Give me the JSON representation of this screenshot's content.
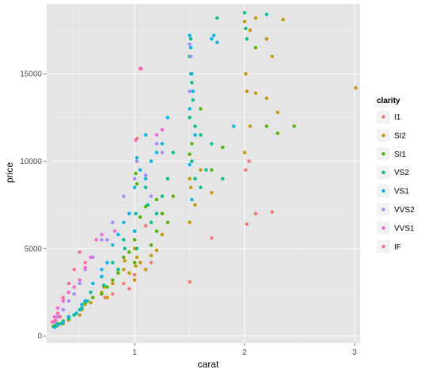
{
  "chart_data": {
    "type": "scatter",
    "xlabel": "carat",
    "ylabel": "price",
    "xlim": [
      0.2,
      3.05
    ],
    "ylim": [
      -400,
      19000
    ],
    "x_ticks": [
      1,
      2,
      3
    ],
    "x_tick_labels": [
      "1",
      "2",
      "3"
    ],
    "y_ticks": [
      0,
      5000,
      10000,
      15000
    ],
    "y_tick_labels": [
      "0",
      "5000",
      "10000",
      "15000"
    ],
    "grid": true,
    "background": "#e5e5e5",
    "legend": {
      "title": "clarity",
      "placement": "right"
    },
    "series": [
      {
        "name": "I1",
        "color": "#F8766D",
        "points": [
          [
            0.9,
            3000
          ],
          [
            0.95,
            2700
          ],
          [
            1.0,
            3500
          ],
          [
            1.05,
            15300
          ],
          [
            1.1,
            6300
          ],
          [
            1.15,
            4200
          ],
          [
            1.02,
            11300
          ],
          [
            1.5,
            3100
          ],
          [
            1.7,
            5600
          ],
          [
            2.01,
            9500
          ],
          [
            2.04,
            10000
          ],
          [
            2.1,
            7000
          ],
          [
            2.25,
            7100
          ],
          [
            2.02,
            6400
          ],
          [
            0.73,
            2200
          ],
          [
            0.8,
            2400
          ]
        ]
      },
      {
        "name": "SI2",
        "color": "#C49A00",
        "points": [
          [
            3.01,
            14200
          ],
          [
            2.0,
            18000
          ],
          [
            2.05,
            17500
          ],
          [
            2.1,
            18200
          ],
          [
            2.2,
            17000
          ],
          [
            2.25,
            16000
          ],
          [
            2.3,
            12800
          ],
          [
            2.35,
            18100
          ],
          [
            2.01,
            15000
          ],
          [
            2.02,
            14000
          ],
          [
            2.1,
            13900
          ],
          [
            2.2,
            13600
          ],
          [
            2.05,
            12000
          ],
          [
            2.0,
            10500
          ],
          [
            1.5,
            9000
          ],
          [
            1.51,
            8500
          ],
          [
            1.52,
            10000
          ],
          [
            1.55,
            7500
          ],
          [
            1.6,
            9500
          ],
          [
            1.7,
            8200
          ],
          [
            1.5,
            6500
          ],
          [
            1.0,
            5000
          ],
          [
            1.02,
            4500
          ],
          [
            1.05,
            4200
          ],
          [
            1.1,
            3800
          ],
          [
            1.15,
            4600
          ],
          [
            1.2,
            4900
          ],
          [
            1.25,
            5800
          ],
          [
            1.0,
            3200
          ],
          [
            1.01,
            4000
          ],
          [
            0.9,
            3800
          ],
          [
            0.91,
            4300
          ],
          [
            0.95,
            3600
          ],
          [
            0.7,
            2500
          ],
          [
            0.72,
            2800
          ],
          [
            0.75,
            2200
          ],
          [
            0.8,
            3000
          ],
          [
            0.5,
            1200
          ],
          [
            0.52,
            1500
          ],
          [
            0.55,
            1800
          ],
          [
            0.6,
            1900
          ],
          [
            0.4,
            900
          ],
          [
            0.35,
            700
          ],
          [
            0.3,
            600
          ]
        ]
      },
      {
        "name": "SI1",
        "color": "#53B400",
        "points": [
          [
            1.5,
            10400
          ],
          [
            1.52,
            11000
          ],
          [
            1.55,
            9000
          ],
          [
            1.6,
            13000
          ],
          [
            1.7,
            9500
          ],
          [
            1.8,
            10800
          ],
          [
            2.1,
            16500
          ],
          [
            2.2,
            12000
          ],
          [
            2.3,
            11600
          ],
          [
            2.45,
            12000
          ],
          [
            1.2,
            6000
          ],
          [
            1.25,
            7000
          ],
          [
            1.3,
            6500
          ],
          [
            1.35,
            8000
          ],
          [
            1.0,
            5500
          ],
          [
            1.05,
            6800
          ],
          [
            1.1,
            7400
          ],
          [
            1.15,
            5200
          ],
          [
            1.2,
            7800
          ],
          [
            0.9,
            4500
          ],
          [
            0.95,
            4800
          ],
          [
            1.0,
            4200
          ],
          [
            0.8,
            3200
          ],
          [
            0.85,
            3600
          ],
          [
            0.75,
            2800
          ],
          [
            0.7,
            2400
          ],
          [
            0.62,
            2200
          ],
          [
            0.55,
            1900
          ],
          [
            0.5,
            1500
          ],
          [
            0.45,
            1200
          ],
          [
            0.4,
            1000
          ],
          [
            0.35,
            850
          ],
          [
            0.3,
            700
          ],
          [
            0.26,
            550
          ],
          [
            0.28,
            600
          ],
          [
            1.01,
            9300
          ],
          [
            1.02,
            8700
          ]
        ]
      },
      {
        "name": "VS2",
        "color": "#00C094",
        "points": [
          [
            1.5,
            16000
          ],
          [
            1.51,
            15000
          ],
          [
            1.52,
            14500
          ],
          [
            1.53,
            13500
          ],
          [
            1.5,
            12500
          ],
          [
            1.55,
            12000
          ],
          [
            1.6,
            11500
          ],
          [
            1.7,
            11000
          ],
          [
            1.75,
            18200
          ],
          [
            1.51,
            17000
          ],
          [
            1.52,
            10000
          ],
          [
            1.55,
            9000
          ],
          [
            1.6,
            8500
          ],
          [
            1.65,
            9500
          ],
          [
            1.8,
            9000
          ],
          [
            2.0,
            18500
          ],
          [
            2.01,
            17600
          ],
          [
            2.02,
            17000
          ],
          [
            2.2,
            18400
          ],
          [
            1.2,
            7000
          ],
          [
            1.25,
            8000
          ],
          [
            1.3,
            9000
          ],
          [
            1.35,
            10500
          ],
          [
            1.1,
            8500
          ],
          [
            1.12,
            7500
          ],
          [
            1.15,
            6500
          ],
          [
            1.0,
            6000
          ],
          [
            1.01,
            7000
          ],
          [
            1.02,
            5000
          ],
          [
            0.9,
            5500
          ],
          [
            0.91,
            5000
          ],
          [
            0.8,
            4200
          ],
          [
            0.85,
            3800
          ],
          [
            0.7,
            3400
          ],
          [
            0.72,
            2900
          ],
          [
            0.6,
            2500
          ],
          [
            0.57,
            2000
          ],
          [
            0.52,
            1600
          ],
          [
            0.45,
            1200
          ],
          [
            0.4,
            1000
          ],
          [
            0.33,
            700
          ],
          [
            0.28,
            550
          ]
        ]
      },
      {
        "name": "VS1",
        "color": "#00B6EB",
        "points": [
          [
            1.5,
            17200
          ],
          [
            1.51,
            16500
          ],
          [
            1.52,
            15000
          ],
          [
            1.7,
            17000
          ],
          [
            1.72,
            17200
          ],
          [
            1.75,
            16800
          ],
          [
            1.9,
            12000
          ],
          [
            1.5,
            13000
          ],
          [
            1.53,
            14000
          ],
          [
            1.55,
            11500
          ],
          [
            1.3,
            12500
          ],
          [
            1.25,
            11000
          ],
          [
            1.2,
            10500
          ],
          [
            1.1,
            9000
          ],
          [
            1.0,
            8500
          ],
          [
            1.05,
            9500
          ],
          [
            1.02,
            10200
          ],
          [
            1.1,
            11500
          ],
          [
            1.15,
            10000
          ],
          [
            0.9,
            6500
          ],
          [
            0.95,
            7000
          ],
          [
            1.0,
            6000
          ],
          [
            0.8,
            5200
          ],
          [
            0.85,
            5800
          ],
          [
            0.75,
            4200
          ],
          [
            0.7,
            3800
          ],
          [
            0.7,
            3400
          ],
          [
            0.62,
            3000
          ],
          [
            0.55,
            2000
          ],
          [
            0.52,
            1800
          ],
          [
            0.5,
            1500
          ],
          [
            0.47,
            1300
          ],
          [
            0.4,
            1100
          ],
          [
            0.35,
            800
          ],
          [
            0.3,
            650
          ],
          [
            0.27,
            500
          ],
          [
            1.5,
            9800
          ],
          [
            1.52,
            7800
          ]
        ]
      },
      {
        "name": "VVS2",
        "color": "#A58AFF",
        "points": [
          [
            1.5,
            16700
          ],
          [
            1.51,
            16000
          ],
          [
            1.5,
            14000
          ],
          [
            1.2,
            11000
          ],
          [
            1.25,
            10500
          ],
          [
            1.15,
            8000
          ],
          [
            1.1,
            9200
          ],
          [
            1.0,
            9000
          ],
          [
            1.02,
            10000
          ],
          [
            0.9,
            8000
          ],
          [
            0.8,
            6500
          ],
          [
            0.75,
            5500
          ],
          [
            0.7,
            5500
          ],
          [
            0.62,
            4500
          ],
          [
            0.55,
            3800
          ],
          [
            0.5,
            3000
          ],
          [
            0.45,
            2400
          ],
          [
            0.4,
            2000
          ],
          [
            0.35,
            1500
          ],
          [
            0.3,
            1100
          ],
          [
            0.27,
            800
          ]
        ]
      },
      {
        "name": "VVS1",
        "color": "#FB61D7",
        "points": [
          [
            1.05,
            15300
          ],
          [
            1.2,
            11500
          ],
          [
            1.25,
            11800
          ],
          [
            1.01,
            11200
          ],
          [
            0.82,
            6000
          ],
          [
            0.7,
            5800
          ],
          [
            0.65,
            5500
          ],
          [
            0.6,
            4500
          ],
          [
            0.55,
            3900
          ],
          [
            0.5,
            3200
          ],
          [
            0.45,
            2800
          ],
          [
            0.4,
            2500
          ],
          [
            0.35,
            2000
          ],
          [
            0.3,
            1600
          ],
          [
            0.27,
            1100
          ],
          [
            0.28,
            900
          ]
        ]
      },
      {
        "name": "IF",
        "color": "#FF66A0",
        "points": [
          [
            1.06,
            15300
          ],
          [
            0.5,
            4800
          ],
          [
            0.55,
            4200
          ],
          [
            0.45,
            3800
          ],
          [
            0.4,
            3000
          ],
          [
            0.35,
            2200
          ],
          [
            0.3,
            1300
          ],
          [
            0.25,
            800
          ],
          [
            0.28,
            900
          ],
          [
            0.32,
            1100
          ]
        ]
      }
    ]
  }
}
